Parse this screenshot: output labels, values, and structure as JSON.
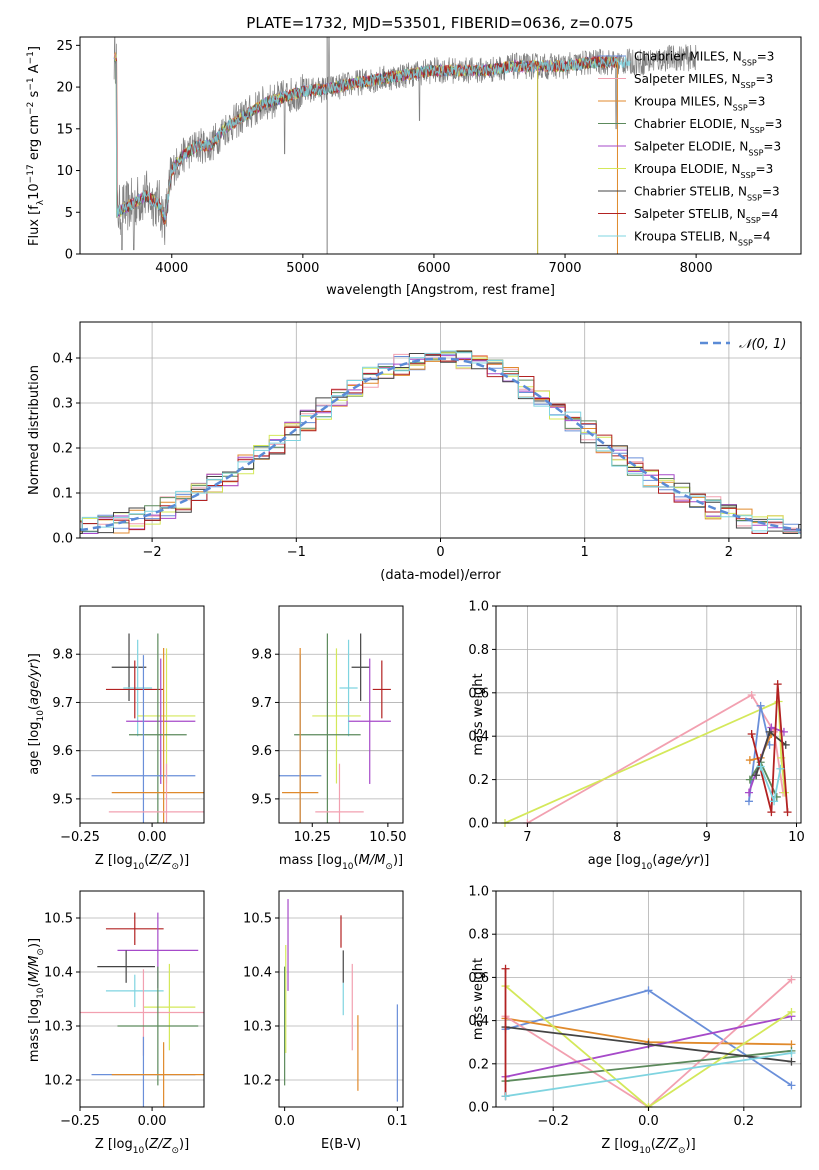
{
  "figure": {
    "title": "PLATE=1732, MJD=53501, FIBERID=0636, z=0.075"
  },
  "chart_data": [
    {
      "panel": "spectrum",
      "type": "line",
      "xlabel": "wavelength [Angstrom, rest frame]",
      "ylabel_parts": [
        "Flux [f",
        "λ",
        "10",
        "−17",
        " erg cm",
        "−2",
        " s",
        "−1",
        " A",
        "−1",
        "]"
      ],
      "xlim": [
        3300,
        8800
      ],
      "ylim": [
        0,
        26
      ],
      "xticks": [
        4000,
        5000,
        6000,
        7000,
        8000
      ],
      "yticks": [
        0,
        5,
        10,
        15,
        20,
        25
      ],
      "continuum_points": [
        [
          3580,
          5
        ],
        [
          3700,
          6
        ],
        [
          3800,
          7
        ],
        [
          3900,
          6
        ],
        [
          3950,
          4
        ],
        [
          4000,
          10
        ],
        [
          4100,
          12
        ],
        [
          4200,
          13
        ],
        [
          4300,
          13
        ],
        [
          4400,
          15
        ],
        [
          4500,
          16
        ],
        [
          4600,
          17
        ],
        [
          4700,
          18
        ],
        [
          4800,
          18.5
        ],
        [
          4900,
          19
        ],
        [
          5000,
          19.5
        ],
        [
          5200,
          19.8
        ],
        [
          5400,
          20.5
        ],
        [
          5600,
          21
        ],
        [
          5800,
          21.5
        ],
        [
          6000,
          22
        ],
        [
          6200,
          22
        ],
        [
          6400,
          22
        ],
        [
          6600,
          22.5
        ],
        [
          6800,
          22.5
        ],
        [
          7000,
          22.5
        ],
        [
          7200,
          23
        ],
        [
          7400,
          23
        ],
        [
          7600,
          23
        ],
        [
          7800,
          23.5
        ],
        [
          8000,
          23.5
        ]
      ],
      "legend_position": "upper right",
      "series": [
        {
          "name_html": "Chabrier MILES, N<tspan baseline-shift='sub' font-size='8'>SSP</tspan>=3",
          "color": "#6a8fd9"
        },
        {
          "name_html": "Salpeter MILES, N<tspan baseline-shift='sub' font-size='8'>SSP</tspan>=3",
          "color": "#f2a0b0"
        },
        {
          "name_html": "Kroupa MILES, N<tspan baseline-shift='sub' font-size='8'>SSP</tspan>=3",
          "color": "#e08a2c"
        },
        {
          "name_html": "Chabrier ELODIE, N<tspan baseline-shift='sub' font-size='8'>SSP</tspan>=3",
          "color": "#5c8a5c"
        },
        {
          "name_html": "Salpeter ELODIE, N<tspan baseline-shift='sub' font-size='8'>SSP</tspan>=3",
          "color": "#a64ac9"
        },
        {
          "name_html": "Kroupa ELODIE, N<tspan baseline-shift='sub' font-size='8'>SSP</tspan>=3",
          "color": "#d4e85a"
        },
        {
          "name_html": "Chabrier STELIB, N<tspan baseline-shift='sub' font-size='8'>SSP</tspan>=3",
          "color": "#444444"
        },
        {
          "name_html": "Salpeter STELIB, N<tspan baseline-shift='sub' font-size='8'>SSP</tspan>=4",
          "color": "#b22222"
        },
        {
          "name_html": "Kroupa STELIB, N<tspan baseline-shift='sub' font-size='8'>SSP</tspan>=4",
          "color": "#7fd4e0"
        }
      ]
    },
    {
      "panel": "residual-histogram",
      "type": "step",
      "xlabel": "(data-model)/error",
      "ylabel": "Normed distribution",
      "xlim": [
        -2.5,
        2.5
      ],
      "ylim": [
        0,
        0.48
      ],
      "xticks": [
        -2,
        -1,
        0,
        1,
        2
      ],
      "yticks": [
        0.0,
        0.1,
        0.2,
        0.3,
        0.4
      ],
      "grid": true,
      "legend": {
        "label": "𝒩(0, 1)",
        "position": "upper right"
      }
    },
    {
      "panel": "age-vs-Z",
      "type": "errorbar",
      "xlabel": "Z [log10(Z/Z⊙)]",
      "ylabel": "age [log10(age/yr)]",
      "xlim": [
        -0.25,
        0.18
      ],
      "ylim": [
        9.45,
        9.9
      ],
      "xticks": [
        -0.25,
        0.0
      ],
      "yticks": [
        9.5,
        9.6,
        9.7,
        9.8
      ],
      "points": [
        {
          "x": -0.08,
          "y": 9.773,
          "xerr": 0.06,
          "yerr": 0.07,
          "color": "#444444"
        },
        {
          "x": -0.05,
          "y": 9.73,
          "xerr": 0.05,
          "yerr": 0.1,
          "color": "#7fd4e0"
        },
        {
          "x": -0.06,
          "y": 9.727,
          "xerr": 0.1,
          "yerr": 0.06,
          "color": "#b22222"
        },
        {
          "x": 0.05,
          "y": 9.672,
          "xerr": 0.1,
          "yerr": 0.14,
          "color": "#d4e85a"
        },
        {
          "x": 0.03,
          "y": 9.661,
          "xerr": 0.12,
          "yerr": 0.13,
          "color": "#a64ac9"
        },
        {
          "x": 0.02,
          "y": 9.633,
          "xerr": 0.1,
          "yerr": 0.21,
          "color": "#5c8a5c"
        },
        {
          "x": -0.03,
          "y": 9.548,
          "xerr": 0.18,
          "yerr": 0.25,
          "color": "#6a8fd9"
        },
        {
          "x": 0.04,
          "y": 9.513,
          "xerr": 0.18,
          "yerr": 0.3,
          "color": "#e08a2c"
        },
        {
          "x": 0.05,
          "y": 9.473,
          "xerr": 0.2,
          "yerr": 0.1,
          "color": "#f2a0b0"
        }
      ]
    },
    {
      "panel": "age-vs-mass",
      "type": "errorbar",
      "xlabel": "mass [log10(M/M⊙)]",
      "ylabel": "",
      "xlim": [
        10.14,
        10.55
      ],
      "ylim": [
        9.45,
        9.9
      ],
      "xticks": [
        10.25,
        10.5
      ],
      "yticks": [
        9.5,
        9.6,
        9.7,
        9.8
      ],
      "points": [
        {
          "x": 10.41,
          "y": 9.773,
          "xerr": 0.03,
          "yerr": 0.07,
          "color": "#444444"
        },
        {
          "x": 10.37,
          "y": 9.73,
          "xerr": 0.03,
          "yerr": 0.1,
          "color": "#7fd4e0"
        },
        {
          "x": 10.48,
          "y": 9.727,
          "xerr": 0.03,
          "yerr": 0.06,
          "color": "#b22222"
        },
        {
          "x": 10.33,
          "y": 9.672,
          "xerr": 0.08,
          "yerr": 0.14,
          "color": "#d4e85a"
        },
        {
          "x": 10.44,
          "y": 9.661,
          "xerr": 0.07,
          "yerr": 0.13,
          "color": "#a64ac9"
        },
        {
          "x": 10.3,
          "y": 9.633,
          "xerr": 0.11,
          "yerr": 0.21,
          "color": "#5c8a5c"
        },
        {
          "x": 10.21,
          "y": 9.548,
          "xerr": 0.07,
          "yerr": 0.25,
          "color": "#6a8fd9"
        },
        {
          "x": 10.21,
          "y": 9.513,
          "xerr": 0.06,
          "yerr": 0.3,
          "color": "#e08a2c"
        },
        {
          "x": 10.34,
          "y": 9.473,
          "xerr": 0.08,
          "yerr": 0.1,
          "color": "#f2a0b0"
        }
      ]
    },
    {
      "panel": "weight-vs-age",
      "type": "line",
      "xlabel": "age [log10(age/yr)]",
      "ylabel": "mass weight",
      "xlim": [
        6.65,
        10.05
      ],
      "ylim": [
        0,
        1
      ],
      "xticks": [
        7,
        8,
        9,
        10
      ],
      "yticks": [
        0.0,
        0.2,
        0.4,
        0.6,
        0.8,
        1.0
      ],
      "grid": true,
      "series": [
        {
          "color": "#f2a0b0",
          "points": [
            [
              7.0,
              0.0
            ],
            [
              9.5,
              0.59
            ],
            [
              9.75,
              0.42
            ],
            [
              9.85,
              0.14
            ]
          ]
        },
        {
          "color": "#d4e85a",
          "points": [
            [
              6.75,
              0.0
            ],
            [
              9.8,
              0.56
            ],
            [
              9.83,
              0.3
            ],
            [
              9.87,
              0.14
            ]
          ]
        },
        {
          "color": "#6a8fd9",
          "points": [
            [
              9.47,
              0.1
            ],
            [
              9.6,
              0.54
            ],
            [
              9.7,
              0.36
            ]
          ]
        },
        {
          "color": "#e08a2c",
          "points": [
            [
              9.48,
              0.29
            ],
            [
              9.6,
              0.3
            ],
            [
              9.72,
              0.41
            ]
          ]
        },
        {
          "color": "#a64ac9",
          "points": [
            [
              9.47,
              0.14
            ],
            [
              9.72,
              0.44
            ],
            [
              9.86,
              0.42
            ]
          ]
        },
        {
          "color": "#5c8a5c",
          "points": [
            [
              9.48,
              0.2
            ],
            [
              9.6,
              0.28
            ],
            [
              9.78,
              0.12
            ]
          ]
        },
        {
          "color": "#444444",
          "points": [
            [
              9.55,
              0.22
            ],
            [
              9.7,
              0.42
            ],
            [
              9.88,
              0.36
            ]
          ]
        },
        {
          "color": "#b22222",
          "points": [
            [
              9.5,
              0.41
            ],
            [
              9.72,
              0.05
            ],
            [
              9.79,
              0.64
            ],
            [
              9.9,
              0.05
            ]
          ]
        },
        {
          "color": "#7fd4e0",
          "points": [
            [
              9.6,
              0.26
            ],
            [
              9.75,
              0.1
            ],
            [
              9.82,
              0.25
            ]
          ]
        }
      ]
    },
    {
      "panel": "mass-vs-Z",
      "type": "errorbar",
      "xlabel": "Z [log10(Z/Z⊙)]",
      "ylabel": "mass [log10(M/M⊙)]",
      "xlim": [
        -0.25,
        0.18
      ],
      "ylim": [
        10.15,
        10.55
      ],
      "xticks": [
        -0.25,
        0.0
      ],
      "yticks": [
        10.2,
        10.3,
        10.4,
        10.5
      ],
      "points": [
        {
          "x": -0.06,
          "y": 10.48,
          "xerr": 0.1,
          "yerr": 0.03,
          "color": "#b22222"
        },
        {
          "x": 0.02,
          "y": 10.44,
          "xerr": 0.14,
          "yerr": 0.07,
          "color": "#a64ac9"
        },
        {
          "x": -0.09,
          "y": 10.41,
          "xerr": 0.1,
          "yerr": 0.03,
          "color": "#444444"
        },
        {
          "x": -0.06,
          "y": 10.365,
          "xerr": 0.1,
          "yerr": 0.03,
          "color": "#7fd4e0"
        },
        {
          "x": 0.06,
          "y": 10.335,
          "xerr": 0.09,
          "yerr": 0.08,
          "color": "#d4e85a"
        },
        {
          "x": -0.03,
          "y": 10.325,
          "xerr": 0.22,
          "yerr": 0.08,
          "color": "#f2a0b0"
        },
        {
          "x": 0.02,
          "y": 10.3,
          "xerr": 0.14,
          "yerr": 0.11,
          "color": "#5c8a5c"
        },
        {
          "x": -0.03,
          "y": 10.21,
          "xerr": 0.18,
          "yerr": 0.07,
          "color": "#6a8fd9"
        },
        {
          "x": 0.04,
          "y": 10.21,
          "xerr": 0.18,
          "yerr": 0.06,
          "color": "#e08a2c"
        }
      ]
    },
    {
      "panel": "mass-vs-EBV",
      "type": "errorbar",
      "xlabel": "E(B-V)",
      "ylabel": "",
      "xlim": [
        -0.005,
        0.105
      ],
      "ylim": [
        10.15,
        10.55
      ],
      "xticks": [
        0.0,
        0.1
      ],
      "yticks": [
        10.2,
        10.3,
        10.4,
        10.5
      ],
      "points": [
        {
          "x": 0.05,
          "y": 10.475,
          "yerr": 0.03,
          "color": "#b22222"
        },
        {
          "x": 0.003,
          "y": 10.45,
          "yerr": 0.085,
          "color": "#a64ac9"
        },
        {
          "x": 0.052,
          "y": 10.41,
          "yerr": 0.03,
          "color": "#444444"
        },
        {
          "x": 0.052,
          "y": 10.35,
          "yerr": 0.03,
          "color": "#7fd4e0"
        },
        {
          "x": 0.06,
          "y": 10.335,
          "yerr": 0.08,
          "color": "#f2a0b0"
        },
        {
          "x": 0.065,
          "y": 10.25,
          "yerr": 0.07,
          "color": "#e08a2c"
        },
        {
          "x": 0.0,
          "y": 10.3,
          "yerr": 0.11,
          "color": "#5c8a5c"
        },
        {
          "x": 0.001,
          "y": 10.35,
          "yerr": 0.1,
          "color": "#d4e85a"
        },
        {
          "x": 0.1,
          "y": 10.25,
          "yerr": 0.09,
          "color": "#6a8fd9"
        }
      ]
    },
    {
      "panel": "weight-vs-Z",
      "type": "line",
      "xlabel": "Z [log10(Z/Z⊙)]",
      "ylabel": "mass weight",
      "xlim": [
        -0.32,
        0.32
      ],
      "ylim": [
        0,
        1
      ],
      "xticks": [
        -0.2,
        0.0,
        0.2
      ],
      "yticks": [
        0.0,
        0.2,
        0.4,
        0.6,
        0.8,
        1.0
      ],
      "grid": true,
      "series": [
        {
          "color": "#6a8fd9",
          "points": [
            [
              -0.3,
              0.36
            ],
            [
              0.0,
              0.54
            ],
            [
              0.3,
              0.1
            ]
          ]
        },
        {
          "color": "#e08a2c",
          "points": [
            [
              -0.3,
              0.41
            ],
            [
              0.0,
              0.3
            ],
            [
              0.3,
              0.29
            ]
          ]
        },
        {
          "color": "#f2a0b0",
          "points": [
            [
              -0.3,
              0.42
            ],
            [
              0.0,
              0.0
            ],
            [
              0.3,
              0.59
            ]
          ]
        },
        {
          "color": "#5c8a5c",
          "points": [
            [
              -0.3,
              0.12
            ],
            [
              0.3,
              0.26
            ]
          ]
        },
        {
          "color": "#a64ac9",
          "points": [
            [
              -0.3,
              0.14
            ],
            [
              0.3,
              0.42
            ]
          ]
        },
        {
          "color": "#d4e85a",
          "points": [
            [
              -0.3,
              0.56
            ],
            [
              0.0,
              0.0
            ],
            [
              0.3,
              0.44
            ]
          ]
        },
        {
          "color": "#444444",
          "points": [
            [
              -0.3,
              0.37
            ],
            [
              0.0,
              0.29
            ],
            [
              0.3,
              0.21
            ]
          ]
        },
        {
          "color": "#b22222",
          "points": [
            [
              -0.3,
              0.64
            ],
            [
              -0.3,
              0.05
            ]
          ]
        },
        {
          "color": "#7fd4e0",
          "points": [
            [
              -0.3,
              0.05
            ],
            [
              0.3,
              0.25
            ]
          ]
        }
      ]
    }
  ]
}
